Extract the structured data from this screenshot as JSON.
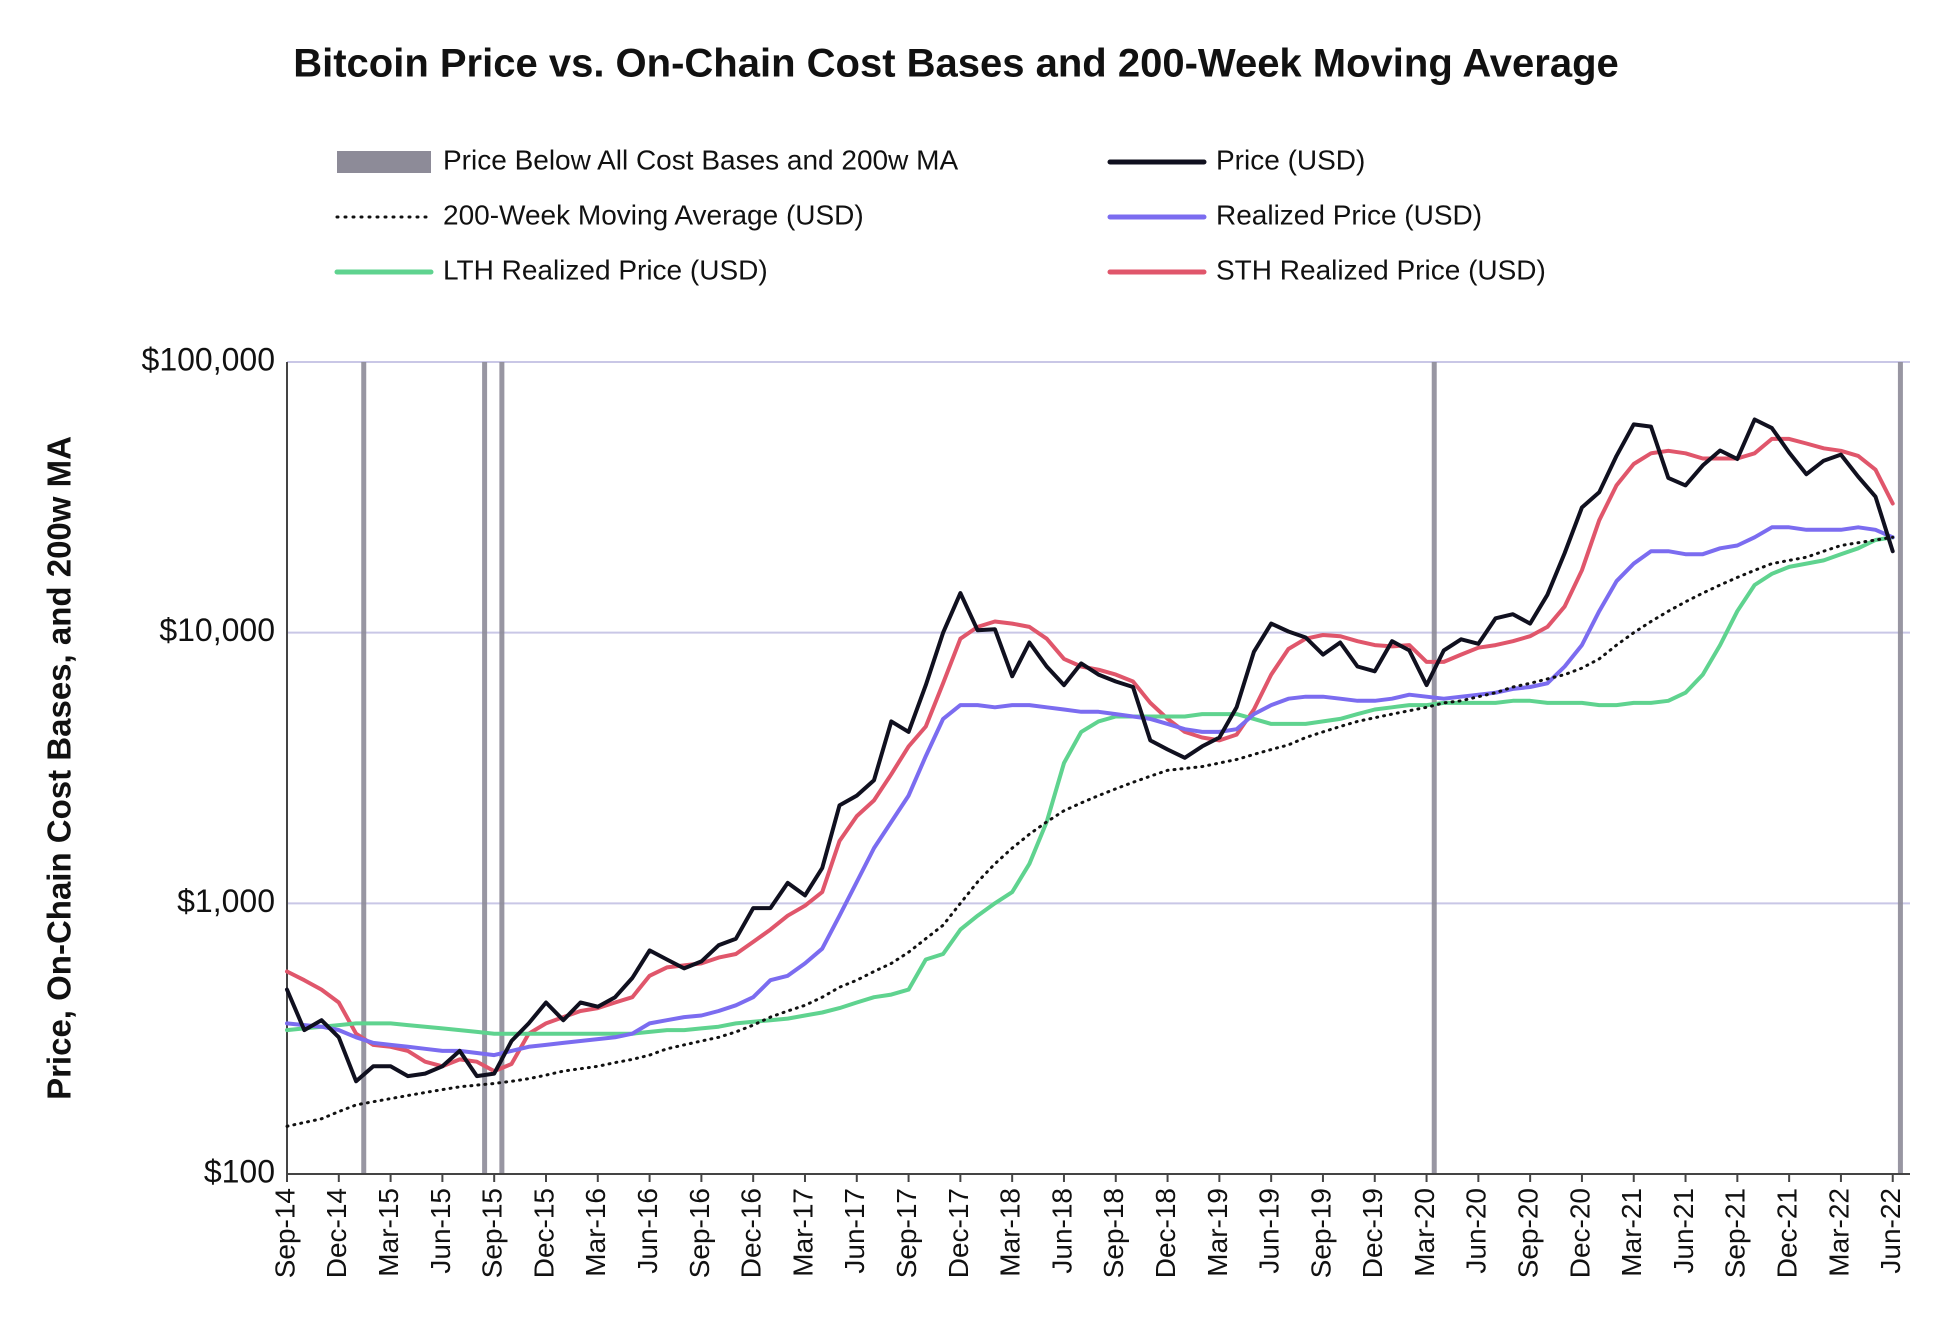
{
  "chart_data": {
    "type": "line",
    "title": "Bitcoin Price vs. On-Chain Cost Bases and 200-Week Moving Average",
    "y_label": "Price, On-Chain Cost Bases, and 200w MA",
    "log_scale": true,
    "grid": true,
    "x": [
      "2014-09",
      "2014-10",
      "2014-11",
      "2014-12",
      "2015-01",
      "2015-02",
      "2015-03",
      "2015-04",
      "2015-05",
      "2015-06",
      "2015-07",
      "2015-08",
      "2015-09",
      "2015-10",
      "2015-11",
      "2015-12",
      "2016-01",
      "2016-02",
      "2016-03",
      "2016-04",
      "2016-05",
      "2016-06",
      "2016-07",
      "2016-08",
      "2016-09",
      "2016-10",
      "2016-11",
      "2016-12",
      "2017-01",
      "2017-02",
      "2017-03",
      "2017-04",
      "2017-05",
      "2017-06",
      "2017-07",
      "2017-08",
      "2017-09",
      "2017-10",
      "2017-11",
      "2017-12",
      "2018-01",
      "2018-02",
      "2018-03",
      "2018-04",
      "2018-05",
      "2018-06",
      "2018-07",
      "2018-08",
      "2018-09",
      "2018-10",
      "2018-11",
      "2018-12",
      "2019-01",
      "2019-02",
      "2019-03",
      "2019-04",
      "2019-05",
      "2019-06",
      "2019-07",
      "2019-08",
      "2019-09",
      "2019-10",
      "2019-11",
      "2019-12",
      "2020-01",
      "2020-02",
      "2020-03",
      "2020-04",
      "2020-05",
      "2020-06",
      "2020-07",
      "2020-08",
      "2020-09",
      "2020-10",
      "2020-11",
      "2020-12",
      "2021-01",
      "2021-02",
      "2021-03",
      "2021-04",
      "2021-05",
      "2021-06",
      "2021-07",
      "2021-08",
      "2021-09",
      "2021-10",
      "2021-11",
      "2021-12",
      "2022-01",
      "2022-02",
      "2022-03",
      "2022-04",
      "2022-05",
      "2022-06"
    ],
    "xlim": [
      "2014-09",
      "2022-07"
    ],
    "xticks": [
      {
        "value": "2014-09",
        "label": "Sep-14"
      },
      {
        "value": "2014-12",
        "label": "Dec-14"
      },
      {
        "value": "2015-03",
        "label": "Mar-15"
      },
      {
        "value": "2015-06",
        "label": "Jun-15"
      },
      {
        "value": "2015-09",
        "label": "Sep-15"
      },
      {
        "value": "2015-12",
        "label": "Dec-15"
      },
      {
        "value": "2016-03",
        "label": "Mar-16"
      },
      {
        "value": "2016-06",
        "label": "Jun-16"
      },
      {
        "value": "2016-09",
        "label": "Sep-16"
      },
      {
        "value": "2016-12",
        "label": "Dec-16"
      },
      {
        "value": "2017-03",
        "label": "Mar-17"
      },
      {
        "value": "2017-06",
        "label": "Jun-17"
      },
      {
        "value": "2017-09",
        "label": "Sep-17"
      },
      {
        "value": "2017-12",
        "label": "Dec-17"
      },
      {
        "value": "2018-03",
        "label": "Mar-18"
      },
      {
        "value": "2018-06",
        "label": "Jun-18"
      },
      {
        "value": "2018-09",
        "label": "Sep-18"
      },
      {
        "value": "2018-12",
        "label": "Dec-18"
      },
      {
        "value": "2019-03",
        "label": "Mar-19"
      },
      {
        "value": "2019-06",
        "label": "Jun-19"
      },
      {
        "value": "2019-09",
        "label": "Sep-19"
      },
      {
        "value": "2019-12",
        "label": "Dec-19"
      },
      {
        "value": "2020-03",
        "label": "Mar-20"
      },
      {
        "value": "2020-06",
        "label": "Jun-20"
      },
      {
        "value": "2020-09",
        "label": "Sep-20"
      },
      {
        "value": "2020-12",
        "label": "Dec-20"
      },
      {
        "value": "2021-03",
        "label": "Mar-21"
      },
      {
        "value": "2021-06",
        "label": "Jun-21"
      },
      {
        "value": "2021-09",
        "label": "Sep-21"
      },
      {
        "value": "2021-12",
        "label": "Dec-21"
      },
      {
        "value": "2022-03",
        "label": "Mar-22"
      },
      {
        "value": "2022-06",
        "label": "Jun-22"
      }
    ],
    "ylim": [
      100,
      100000
    ],
    "yticks": [
      {
        "value": 100,
        "label": "$100"
      },
      {
        "value": 1000,
        "label": "$1,000"
      },
      {
        "value": 10000,
        "label": "$10,000"
      },
      {
        "value": 100000,
        "label": "$100,000"
      }
    ],
    "highlight": {
      "name": "Price Below All Cost Bases and 200w MA",
      "color": "#8d8b98",
      "x": [
        "2015-01",
        "2015-08",
        "2015-09",
        "2020-03",
        "2022-06"
      ]
    },
    "series": [
      {
        "name": "Price (USD)",
        "color": "#10101f",
        "style": "solid",
        "values": [
          480,
          340,
          370,
          320,
          220,
          250,
          250,
          230,
          235,
          250,
          285,
          230,
          235,
          310,
          360,
          430,
          370,
          430,
          415,
          450,
          530,
          670,
          620,
          575,
          610,
          700,
          740,
          960,
          960,
          1190,
          1070,
          1350,
          2300,
          2500,
          2850,
          4700,
          4300,
          6400,
          10000,
          14000,
          10200,
          10300,
          6900,
          9200,
          7500,
          6400,
          7700,
          7000,
          6600,
          6300,
          4000,
          3700,
          3450,
          3800,
          4100,
          5300,
          8500,
          10800,
          10100,
          9600,
          8300,
          9200,
          7500,
          7200,
          9300,
          8600,
          6400,
          8600,
          9450,
          9100,
          11300,
          11700,
          10800,
          13800,
          19700,
          29000,
          33000,
          45000,
          58800,
          57700,
          37300,
          35000,
          41500,
          47100,
          43800,
          61300,
          57000,
          46300,
          38500,
          43200,
          45500,
          37700,
          31800,
          20000
        ]
      },
      {
        "name": "200-Week Moving Average (USD)",
        "color": "#111111",
        "style": "dotted",
        "values": [
          150,
          155,
          160,
          170,
          180,
          185,
          190,
          195,
          200,
          205,
          210,
          213,
          216,
          220,
          225,
          232,
          240,
          245,
          250,
          258,
          265,
          275,
          290,
          300,
          310,
          320,
          335,
          355,
          380,
          400,
          420,
          450,
          490,
          520,
          560,
          600,
          660,
          740,
          830,
          1000,
          1200,
          1400,
          1600,
          1800,
          2000,
          2200,
          2350,
          2500,
          2650,
          2800,
          2950,
          3100,
          3150,
          3200,
          3300,
          3400,
          3550,
          3700,
          3850,
          4100,
          4300,
          4500,
          4700,
          4850,
          5000,
          5150,
          5300,
          5500,
          5600,
          5800,
          6000,
          6300,
          6500,
          6750,
          7000,
          7400,
          8000,
          9000,
          10000,
          11000,
          12000,
          13000,
          14000,
          15000,
          16000,
          17000,
          18000,
          18500,
          19000,
          20000,
          21000,
          21500,
          22000,
          22500
        ]
      },
      {
        "name": "Realized Price (USD)",
        "color": "#7b6cf0",
        "style": "solid",
        "values": [
          360,
          355,
          350,
          340,
          320,
          305,
          300,
          295,
          290,
          285,
          285,
          280,
          275,
          285,
          295,
          300,
          305,
          310,
          315,
          320,
          330,
          360,
          370,
          380,
          385,
          400,
          420,
          450,
          520,
          540,
          600,
          680,
          900,
          1200,
          1600,
          2000,
          2500,
          3500,
          4800,
          5400,
          5400,
          5300,
          5400,
          5400,
          5300,
          5200,
          5100,
          5100,
          5000,
          4900,
          4800,
          4600,
          4400,
          4300,
          4300,
          4400,
          5000,
          5400,
          5700,
          5800,
          5800,
          5700,
          5600,
          5600,
          5700,
          5900,
          5800,
          5700,
          5800,
          5900,
          6000,
          6200,
          6300,
          6500,
          7500,
          9000,
          12000,
          15500,
          18000,
          20000,
          20000,
          19500,
          19500,
          20500,
          21000,
          22500,
          24500,
          24500,
          24000,
          24000,
          24000,
          24500,
          24000,
          22500
        ]
      },
      {
        "name": "LTH Realized Price (USD)",
        "color": "#5fd38f",
        "style": "solid",
        "values": [
          340,
          345,
          350,
          355,
          360,
          360,
          360,
          355,
          350,
          345,
          340,
          335,
          330,
          330,
          330,
          330,
          330,
          330,
          330,
          330,
          330,
          335,
          340,
          340,
          345,
          350,
          360,
          365,
          370,
          375,
          385,
          395,
          410,
          430,
          450,
          460,
          480,
          620,
          650,
          800,
          900,
          1000,
          1100,
          1400,
          2000,
          3300,
          4300,
          4700,
          4900,
          4900,
          4900,
          4900,
          4900,
          5000,
          5000,
          5000,
          4800,
          4600,
          4600,
          4600,
          4700,
          4800,
          5000,
          5200,
          5300,
          5400,
          5400,
          5500,
          5500,
          5500,
          5500,
          5600,
          5600,
          5500,
          5500,
          5500,
          5400,
          5400,
          5500,
          5500,
          5600,
          6000,
          7000,
          9000,
          12000,
          15000,
          16500,
          17500,
          18000,
          18500,
          19500,
          20500,
          22000,
          22500
        ]
      },
      {
        "name": "STH Realized Price (USD)",
        "color": "#e0566b",
        "style": "solid",
        "values": [
          560,
          520,
          480,
          430,
          330,
          300,
          295,
          285,
          260,
          250,
          265,
          260,
          240,
          255,
          330,
          360,
          380,
          400,
          410,
          430,
          450,
          540,
          580,
          590,
          600,
          630,
          650,
          720,
          800,
          900,
          980,
          1100,
          1700,
          2100,
          2400,
          3000,
          3800,
          4500,
          6500,
          9500,
          10500,
          11000,
          10800,
          10500,
          9500,
          8000,
          7500,
          7300,
          7000,
          6600,
          5500,
          4800,
          4300,
          4100,
          4000,
          4200,
          5200,
          7000,
          8700,
          9500,
          9800,
          9700,
          9300,
          9000,
          8900,
          9000,
          7800,
          7800,
          8300,
          8800,
          9000,
          9300,
          9700,
          10500,
          12500,
          17000,
          26000,
          35000,
          42000,
          46000,
          47000,
          46000,
          44000,
          44000,
          44000,
          46000,
          52000,
          52000,
          50000,
          48000,
          47000,
          45000,
          40000,
          30000
        ]
      }
    ]
  }
}
